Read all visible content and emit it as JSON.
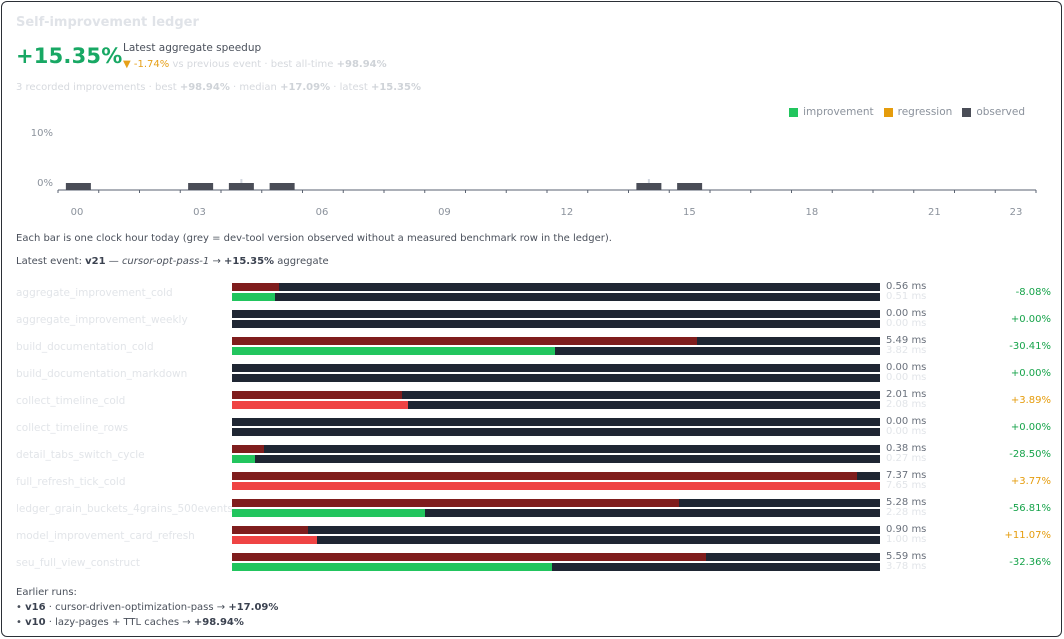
{
  "title": "Self-improvement ledger",
  "headline": {
    "value": "+15.35%",
    "label": "Latest aggregate speedup",
    "delta_arrow": "▼",
    "delta": "-1.74%",
    "delta_suffix": "vs previous event · best all-time",
    "best": "+98.94%"
  },
  "summary": {
    "prefix": "3 recorded improvements · best",
    "best": "+98.94%",
    "mid": "· median",
    "median": "+17.09%",
    "mid2": "· latest",
    "latest": "+15.35%"
  },
  "legend": [
    {
      "label": "improvement",
      "color": "#22c55e"
    },
    {
      "label": "regression",
      "color": "#e59c0c"
    },
    {
      "label": "observed",
      "color": "#4a4d57"
    }
  ],
  "chart_data": {
    "type": "bar",
    "x_tick_labels": [
      "00",
      "03",
      "06",
      "09",
      "12",
      "15",
      "18",
      "21",
      "23"
    ],
    "x_tick_hours": [
      0,
      3,
      6,
      9,
      12,
      15,
      18,
      21,
      23
    ],
    "y_tick_labels": [
      "10%",
      "0%"
    ],
    "xlim": [
      0,
      23
    ],
    "ylim": [
      0,
      10
    ],
    "observed_hours": [
      0,
      3,
      4,
      5,
      14,
      15
    ],
    "measured_hours": [
      4,
      14
    ],
    "colors": {
      "observed": "#4a4d57",
      "axis": "#5a6270",
      "tick_text": "#8b929c",
      "faint": "#d3d8e0"
    }
  },
  "note": "Each bar is one clock hour today (grey = dev-tool version observed without a measured benchmark row in the ledger).",
  "latest_event": {
    "prefix": "Latest event:",
    "version": "v21",
    "dash": "—",
    "name": "cursor-opt-pass-1",
    "arrow": "→",
    "value": "+15.35%",
    "suffix": "aggregate"
  },
  "benchmarks": [
    {
      "name": "aggregate_improvement_cold",
      "before": "0.56 ms",
      "after": "0.51 ms",
      "before_frac": 0.073,
      "after_frac": 0.066,
      "after_color": "#22c55e",
      "pct": "-8.08%",
      "pct_color": "#16a34a"
    },
    {
      "name": "aggregate_improvement_weekly",
      "before": "0.00 ms",
      "after": "0.00 ms",
      "before_frac": 0,
      "after_frac": 0,
      "after_color": "#22c55e",
      "pct": "+0.00%",
      "pct_color": "#16a34a"
    },
    {
      "name": "build_documentation_cold",
      "before": "5.49 ms",
      "after": "3.82 ms",
      "before_frac": 0.718,
      "after_frac": 0.499,
      "after_color": "#22c55e",
      "pct": "-30.41%",
      "pct_color": "#16a34a"
    },
    {
      "name": "build_documentation_markdown",
      "before": "0.00 ms",
      "after": "0.00 ms",
      "before_frac": 0,
      "after_frac": 0,
      "after_color": "#22c55e",
      "pct": "+0.00%",
      "pct_color": "#16a34a"
    },
    {
      "name": "collect_timeline_cold",
      "before": "2.01 ms",
      "after": "2.08 ms",
      "before_frac": 0.263,
      "after_frac": 0.272,
      "after_color": "#ef4444",
      "pct": "+3.89%",
      "pct_color": "#e59c0c"
    },
    {
      "name": "collect_timeline_rows",
      "before": "0.00 ms",
      "after": "0.00 ms",
      "before_frac": 0,
      "after_frac": 0,
      "after_color": "#22c55e",
      "pct": "+0.00%",
      "pct_color": "#16a34a"
    },
    {
      "name": "detail_tabs_switch_cycle",
      "before": "0.38 ms",
      "after": "0.27 ms",
      "before_frac": 0.05,
      "after_frac": 0.035,
      "after_color": "#22c55e",
      "pct": "-28.50%",
      "pct_color": "#16a34a"
    },
    {
      "name": "full_refresh_tick_cold",
      "before": "7.37 ms",
      "after": "7.65 ms",
      "before_frac": 0.964,
      "after_frac": 1.0,
      "after_color": "#ef4444",
      "pct": "+3.77%",
      "pct_color": "#e59c0c"
    },
    {
      "name": "ledger_grain_buckets_4grains_500events",
      "before": "5.28 ms",
      "after": "2.28 ms",
      "before_frac": 0.69,
      "after_frac": 0.298,
      "after_color": "#22c55e",
      "pct": "-56.81%",
      "pct_color": "#16a34a"
    },
    {
      "name": "model_improvement_card_refresh",
      "before": "0.90 ms",
      "after": "1.00 ms",
      "before_frac": 0.118,
      "after_frac": 0.131,
      "after_color": "#ef4444",
      "pct": "+11.07%",
      "pct_color": "#e59c0c"
    },
    {
      "name": "seu_full_view_construct",
      "before": "5.59 ms",
      "after": "3.78 ms",
      "before_frac": 0.731,
      "after_frac": 0.494,
      "after_color": "#22c55e",
      "pct": "-32.36%",
      "pct_color": "#16a34a"
    }
  ],
  "bar_colors": {
    "before": "#7f1d1d",
    "track": "#1f2633"
  },
  "earlier": {
    "heading": "Earlier runs:",
    "runs": [
      {
        "bullet": "•",
        "version": "v16",
        "desc": "· cursor-driven-optimization-pass →",
        "value": "+17.09%"
      },
      {
        "bullet": "•",
        "version": "v10",
        "desc": "· lazy-pages + TTL caches →",
        "value": "+98.94%"
      }
    ]
  }
}
